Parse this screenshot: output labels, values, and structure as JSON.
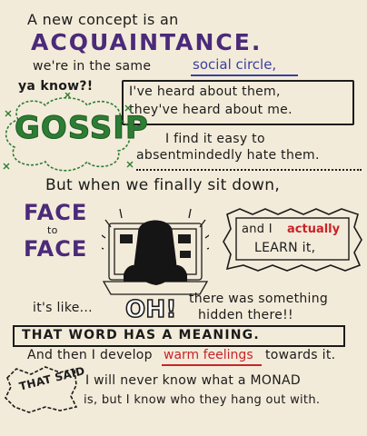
{
  "lines": {
    "l1a": "A new concept is an",
    "l1b": "ACQUAINTANCE.",
    "l2a": "we're in the same",
    "l2b": "social circle,",
    "l3": "ya know?!",
    "l4": "I've heard about them,",
    "l5": "they've heard about me.",
    "gossip": "GOSSIP",
    "l6": "I find it easy to",
    "l7": "absentmindedly hate them.",
    "l8": "But when we finally sit down,",
    "face1": "FACE",
    "to": "to",
    "face2": "FACE",
    "learn1a": "and I",
    "learn1b": "actually",
    "learn2": "LEARN it,",
    "itslike": "it's like...",
    "oh": "OH!",
    "there1": "there was something",
    "there2": "hidden there!!",
    "meaning": "THAT WORD HAS A MEANING.",
    "and1": "And then I develop",
    "warm": "warm feelings",
    "and2": "towards it.",
    "thatsaid": "THAT SAID",
    "monad1": "I will never know what a MONAD",
    "monad2": "is, but I know who they hang out with."
  },
  "colors": {
    "purple": "#4b2a7a",
    "green": "#2d7d34",
    "blue": "#3a3fa0",
    "red": "#c8232a",
    "ink": "#1b1b1b",
    "paper": "#f3ebd9"
  }
}
